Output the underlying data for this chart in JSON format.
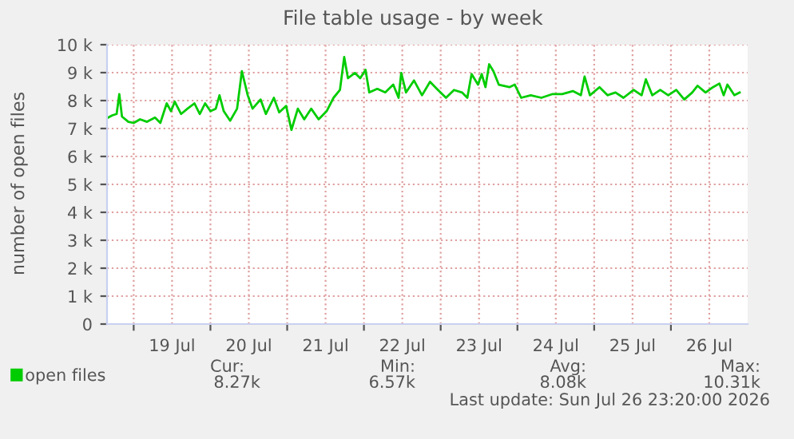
{
  "chart_data": {
    "type": "line",
    "title": "File table usage - by week",
    "ylabel": "number of open files",
    "x": [
      "2026-07-18T16:00",
      "2026-07-18T17:20",
      "2026-07-18T18:40",
      "2026-07-18T19:30",
      "2026-07-18T20:20",
      "2026-07-18T22:20",
      "2026-07-19T00:00",
      "2026-07-19T02:00",
      "2026-07-19T04:10",
      "2026-07-19T06:40",
      "2026-07-19T08:20",
      "2026-07-19T10:20",
      "2026-07-19T11:40",
      "2026-07-19T12:50",
      "2026-07-19T14:50",
      "2026-07-19T16:50",
      "2026-07-19T19:00",
      "2026-07-19T20:40",
      "2026-07-19T22:20",
      "2026-07-20T00:00",
      "2026-07-20T01:40",
      "2026-07-20T02:50",
      "2026-07-20T04:10",
      "2026-07-20T06:10",
      "2026-07-20T08:20",
      "2026-07-20T09:50",
      "2026-07-20T11:40",
      "2026-07-20T13:10",
      "2026-07-20T15:40",
      "2026-07-20T17:20",
      "2026-07-20T19:50",
      "2026-07-20T21:30",
      "2026-07-20T23:40",
      "2026-07-21T01:20",
      "2026-07-21T03:20",
      "2026-07-21T05:20",
      "2026-07-21T07:30",
      "2026-07-21T09:50",
      "2026-07-21T12:20",
      "2026-07-21T14:30",
      "2026-07-21T16:30",
      "2026-07-21T17:50",
      "2026-07-21T19:00",
      "2026-07-21T21:10",
      "2026-07-21T22:50",
      "2026-07-22T00:30",
      "2026-07-22T01:40",
      "2026-07-22T04:10",
      "2026-07-22T06:40",
      "2026-07-22T09:10",
      "2026-07-22T10:50",
      "2026-07-22T11:40",
      "2026-07-22T13:10",
      "2026-07-22T15:40",
      "2026-07-22T18:10",
      "2026-07-22T20:40",
      "2026-07-22T23:10",
      "2026-07-23T01:40",
      "2026-07-23T04:10",
      "2026-07-23T06:40",
      "2026-07-23T08:20",
      "2026-07-23T09:40",
      "2026-07-23T11:40",
      "2026-07-23T12:50",
      "2026-07-23T14:00",
      "2026-07-23T15:10",
      "2026-07-23T16:30",
      "2026-07-23T18:10",
      "2026-07-23T21:30",
      "2026-07-23T23:10",
      "2026-07-24T01:10",
      "2026-07-24T04:10",
      "2026-07-24T07:30",
      "2026-07-24T10:50",
      "2026-07-24T14:00",
      "2026-07-24T17:20",
      "2026-07-24T19:50",
      "2026-07-24T21:00",
      "2026-07-24T22:40",
      "2026-07-25T01:40",
      "2026-07-25T04:10",
      "2026-07-25T06:40",
      "2026-07-25T09:10",
      "2026-07-25T12:20",
      "2026-07-25T14:50",
      "2026-07-25T16:10",
      "2026-07-25T18:10",
      "2026-07-25T20:40",
      "2026-07-25T23:10",
      "2026-07-26T01:40",
      "2026-07-26T04:10",
      "2026-07-26T06:40",
      "2026-07-26T08:20",
      "2026-07-26T10:50",
      "2026-07-26T13:10",
      "2026-07-26T15:10",
      "2026-07-26T16:30",
      "2026-07-26T17:40",
      "2026-07-26T19:50",
      "2026-07-26T21:30"
    ],
    "series": [
      {
        "name": "open files",
        "color": "#00cc00",
        "values": [
          7390,
          7470,
          7520,
          8230,
          7430,
          7240,
          7200,
          7330,
          7240,
          7390,
          7200,
          7900,
          7620,
          7960,
          7520,
          7710,
          7900,
          7520,
          7900,
          7620,
          7710,
          8190,
          7620,
          7280,
          7710,
          9050,
          8190,
          7710,
          8040,
          7520,
          8100,
          7580,
          7810,
          6950,
          7710,
          7330,
          7710,
          7330,
          7620,
          8100,
          8380,
          9560,
          8800,
          8990,
          8800,
          9100,
          8290,
          8420,
          8290,
          8570,
          8100,
          8990,
          8290,
          8720,
          8190,
          8670,
          8380,
          8100,
          8380,
          8290,
          8100,
          8950,
          8570,
          8950,
          8480,
          9300,
          9050,
          8570,
          8480,
          8570,
          8100,
          8190,
          8100,
          8230,
          8230,
          8340,
          8190,
          8860,
          8190,
          8480,
          8190,
          8290,
          8100,
          8380,
          8190,
          8760,
          8190,
          8380,
          8190,
          8380,
          8040,
          8290,
          8530,
          8290,
          8480,
          8610,
          8190,
          8570,
          8190,
          8290
        ]
      }
    ],
    "xlim": [
      "2026-07-18T15:40",
      "2026-07-27T00:00"
    ],
    "xticks": [
      {
        "value": "2026-07-19T00:00",
        "label": null
      },
      {
        "value": "2026-07-19T12:00",
        "label": "19 Jul"
      },
      {
        "value": "2026-07-20T00:00",
        "label": null
      },
      {
        "value": "2026-07-20T12:00",
        "label": "20 Jul"
      },
      {
        "value": "2026-07-21T00:00",
        "label": null
      },
      {
        "value": "2026-07-21T12:00",
        "label": "21 Jul"
      },
      {
        "value": "2026-07-22T00:00",
        "label": null
      },
      {
        "value": "2026-07-22T12:00",
        "label": "22 Jul"
      },
      {
        "value": "2026-07-23T00:00",
        "label": null
      },
      {
        "value": "2026-07-23T12:00",
        "label": "23 Jul"
      },
      {
        "value": "2026-07-24T00:00",
        "label": null
      },
      {
        "value": "2026-07-24T12:00",
        "label": "24 Jul"
      },
      {
        "value": "2026-07-25T00:00",
        "label": null
      },
      {
        "value": "2026-07-25T12:00",
        "label": "25 Jul"
      },
      {
        "value": "2026-07-26T00:00",
        "label": null
      },
      {
        "value": "2026-07-26T12:00",
        "label": "26 Jul"
      }
    ],
    "ylim": [
      0,
      10000
    ],
    "yticks": [
      0,
      {
        "value": 1000,
        "label": "1 k"
      },
      {
        "value": 2000,
        "label": "2 k"
      },
      {
        "value": 3000,
        "label": "3 k"
      },
      {
        "value": 4000,
        "label": "4 k"
      },
      {
        "value": 5000,
        "label": "5 k"
      },
      {
        "value": 6000,
        "label": "6 k"
      },
      {
        "value": 7000,
        "label": "7 k"
      },
      {
        "value": 8000,
        "label": "8 k"
      },
      {
        "value": 9000,
        "label": "9 k"
      },
      {
        "value": 10000,
        "label": "10 k"
      }
    ],
    "grid": true,
    "legend": "bottom left",
    "marker": "none",
    "line_style": "solid",
    "annotations": [
      "Cur:",
      "Min:",
      "Avg:",
      "Max:",
      "8.27k",
      "6.57k",
      "8.08k",
      "10.31k",
      "Last update: Sun Jul 26 23:20:00 2026"
    ]
  }
}
